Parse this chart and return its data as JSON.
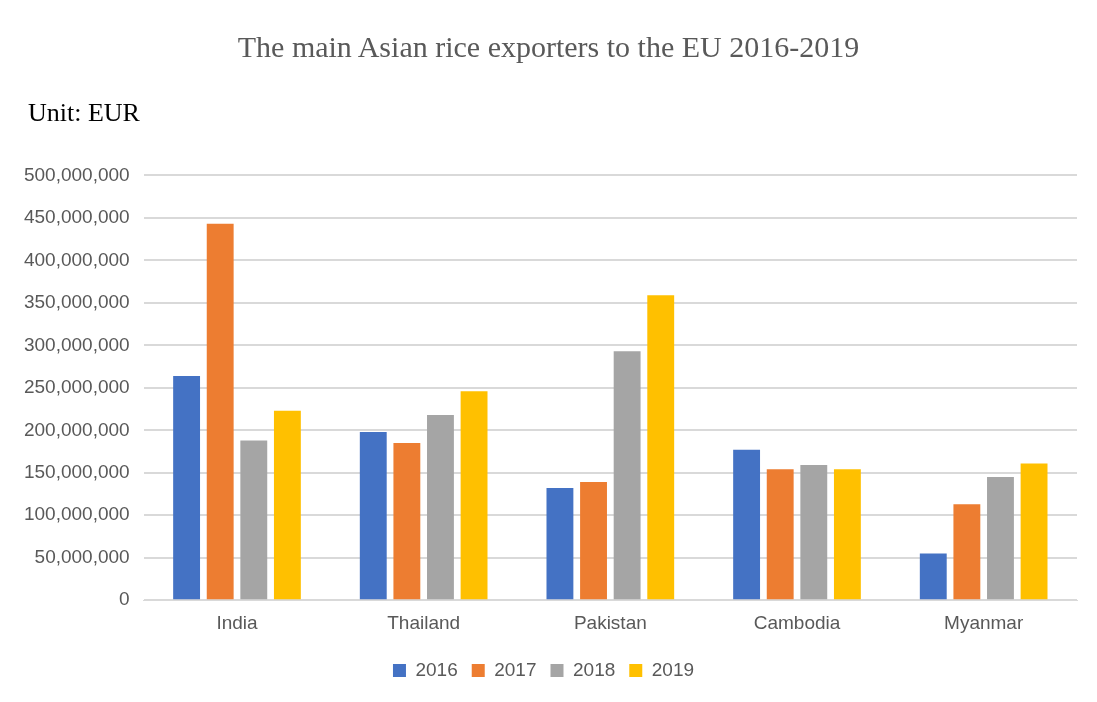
{
  "chart_data": {
    "type": "bar",
    "title": "The main Asian rice exporters to the EU 2016-2019",
    "annotations": [
      "Unit: EUR"
    ],
    "categories": [
      "India",
      "Thailand",
      "Pakistan",
      "Cambodia",
      "Myanmar"
    ],
    "series": [
      {
        "name": "2016",
        "color": "#4472c4",
        "values": [
          264000000,
          198000000,
          132000000,
          177000000,
          55000000
        ]
      },
      {
        "name": "2017",
        "color": "#ed7d31",
        "values": [
          443000000,
          185000000,
          139000000,
          154000000,
          113000000
        ]
      },
      {
        "name": "2018",
        "color": "#a5a5a5",
        "values": [
          188000000,
          218000000,
          293000000,
          159000000,
          145000000
        ]
      },
      {
        "name": "2019",
        "color": "#ffc000",
        "values": [
          223000000,
          246000000,
          359000000,
          154000000,
          161000000
        ]
      }
    ],
    "ylim": [
      0,
      500000000
    ],
    "yticks": [
      0,
      {
        "value": 50000000,
        "label": "50,000,000"
      },
      {
        "value": 100000000,
        "label": "100,000,000"
      },
      {
        "value": 150000000,
        "label": "150,000,000"
      },
      {
        "value": 200000000,
        "label": "200,000,000"
      },
      {
        "value": 250000000,
        "label": "250,000,000"
      },
      {
        "value": 300000000,
        "label": "300,000,000"
      },
      {
        "value": 350000000,
        "label": "350,000,000"
      },
      {
        "value": 400000000,
        "label": "400,000,000"
      },
      {
        "value": 450000000,
        "label": "450,000,000"
      },
      {
        "value": 500000000,
        "label": "500,000,000"
      }
    ],
    "grid": "y",
    "legend": "bottom"
  }
}
